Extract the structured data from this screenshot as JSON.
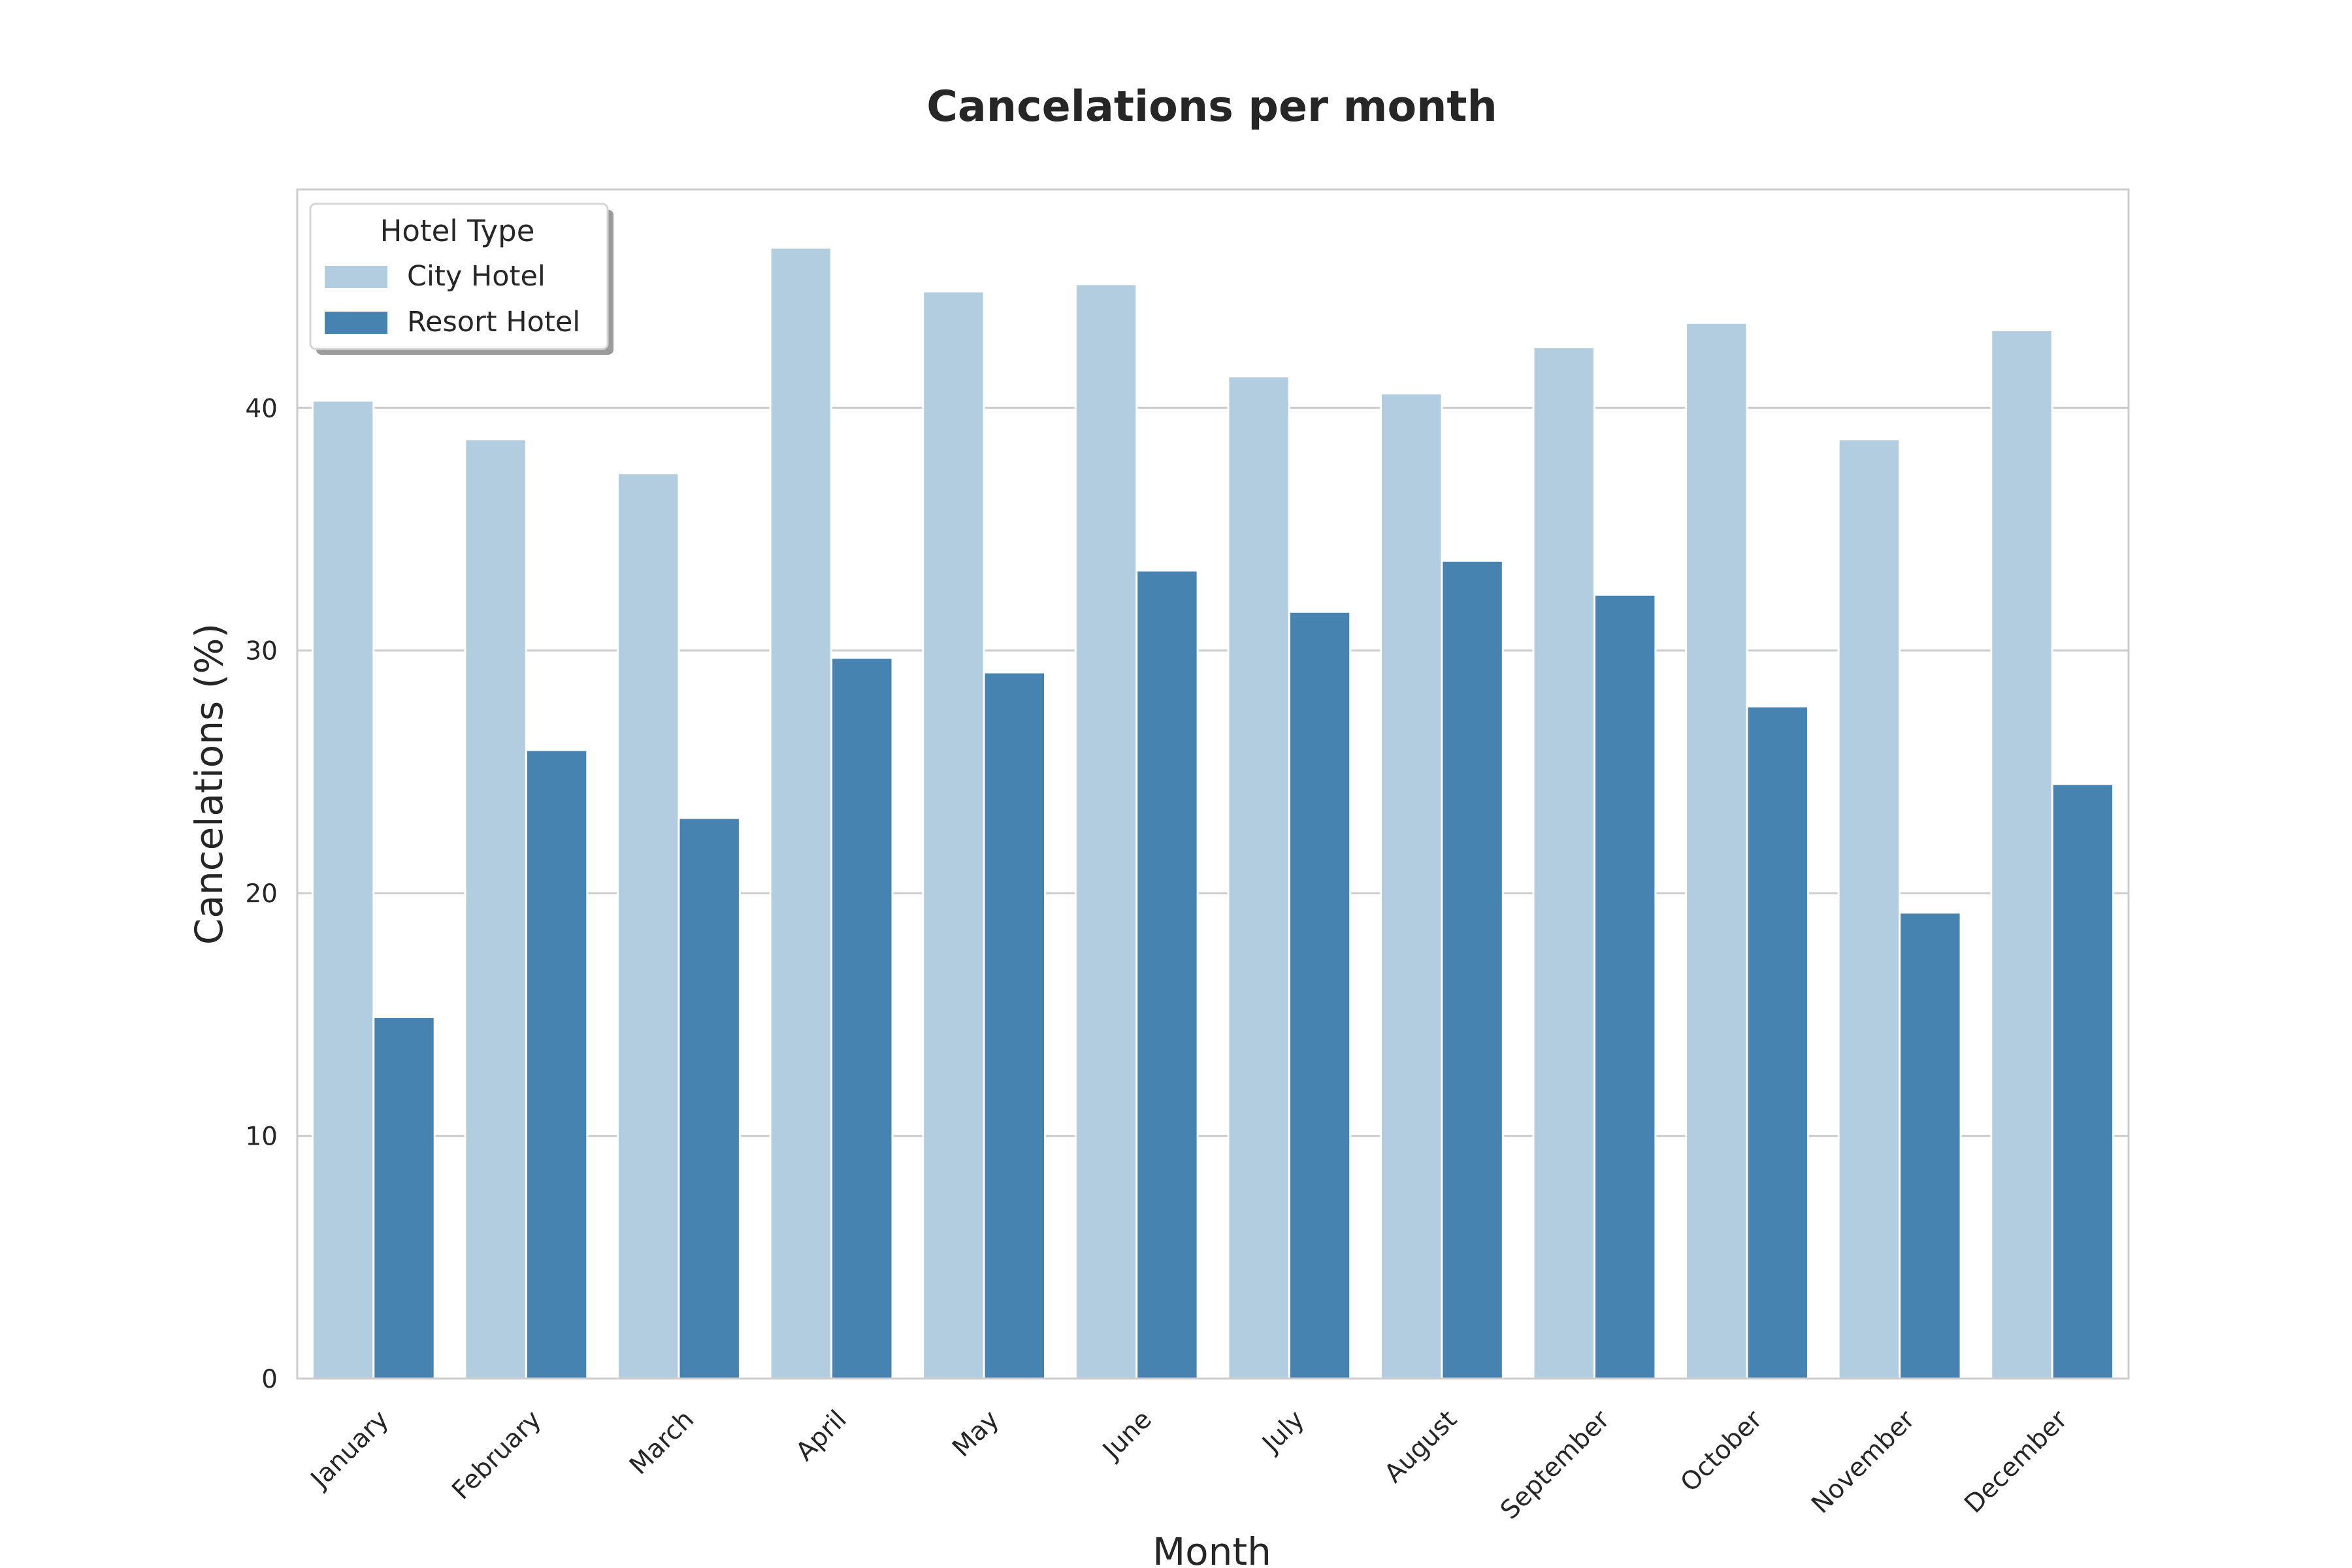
{
  "chart_data": {
    "type": "bar",
    "title": "Cancelations per month",
    "xlabel": "Month",
    "ylabel": "Cancelations (%)",
    "categories": [
      "January",
      "February",
      "March",
      "April",
      "May",
      "June",
      "July",
      "August",
      "September",
      "October",
      "November",
      "December"
    ],
    "series": [
      {
        "name": "City Hotel",
        "color": "#b3cde0",
        "values": [
          40.3,
          38.7,
          37.3,
          46.6,
          44.8,
          45.1,
          41.3,
          40.6,
          42.5,
          43.5,
          38.7,
          43.2
        ]
      },
      {
        "name": "Resort Hotel",
        "color": "#4783b1",
        "values": [
          14.9,
          25.9,
          23.1,
          29.7,
          29.1,
          33.3,
          31.6,
          33.7,
          32.3,
          27.7,
          19.2,
          24.5
        ]
      }
    ],
    "ylim": [
      0,
      49
    ],
    "yticks": [
      0,
      10,
      20,
      30,
      40
    ],
    "grid": "y",
    "legend": {
      "title": "Hotel Type",
      "position": "top-left"
    }
  }
}
